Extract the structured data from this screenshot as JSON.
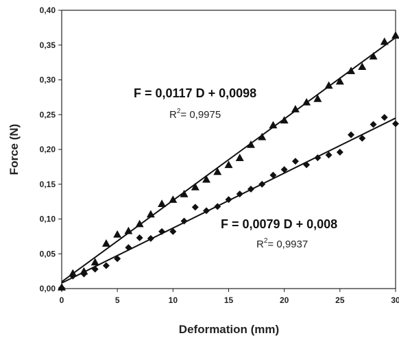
{
  "chart_data": {
    "type": "scatter",
    "xlabel": "Deformation (mm)",
    "ylabel": "Force (N)",
    "xlim": [
      0,
      30
    ],
    "ylim": [
      0,
      0.4
    ],
    "x_ticks": [
      "0",
      "5",
      "10",
      "15",
      "20",
      "25",
      "30"
    ],
    "y_ticks": [
      "0,00",
      "0,05",
      "0,10",
      "0,15",
      "0,20",
      "0,25",
      "0,30",
      "0,35",
      "0,40"
    ],
    "grid": false,
    "legend": "none",
    "series": [
      {
        "marker": "triangle",
        "color": "#111111",
        "x": [
          0,
          1,
          2,
          3,
          4,
          5,
          6,
          7,
          8,
          9,
          10,
          11,
          12,
          13,
          14,
          15,
          16,
          17,
          18,
          19,
          20,
          21,
          22,
          23,
          24,
          25,
          26,
          27,
          28,
          29,
          30
        ],
        "y": [
          0.002,
          0.022,
          0.025,
          0.038,
          0.065,
          0.078,
          0.083,
          0.093,
          0.107,
          0.122,
          0.128,
          0.136,
          0.146,
          0.157,
          0.168,
          0.178,
          0.188,
          0.207,
          0.218,
          0.235,
          0.242,
          0.258,
          0.268,
          0.273,
          0.292,
          0.298,
          0.313,
          0.319,
          0.334,
          0.355,
          0.364
        ],
        "trendline": {
          "slope": 0.0117,
          "intercept": 0.0098,
          "equation": "F = 0,0117 D + 0,0098",
          "r2_prefix": "R",
          "r2_exp": "2",
          "r2_value": "= 0,9975"
        }
      },
      {
        "marker": "diamond",
        "color": "#111111",
        "x": [
          0,
          1,
          2,
          3,
          4,
          5,
          6,
          7,
          8,
          9,
          10,
          11,
          12,
          13,
          14,
          15,
          16,
          17,
          18,
          19,
          20,
          21,
          22,
          23,
          24,
          25,
          26,
          27,
          28,
          29,
          30
        ],
        "y": [
          0.001,
          0.018,
          0.021,
          0.028,
          0.033,
          0.043,
          0.059,
          0.073,
          0.072,
          0.082,
          0.082,
          0.097,
          0.117,
          0.112,
          0.118,
          0.128,
          0.136,
          0.143,
          0.15,
          0.163,
          0.171,
          0.183,
          0.178,
          0.188,
          0.192,
          0.196,
          0.221,
          0.216,
          0.236,
          0.246,
          0.237
        ],
        "trendline": {
          "slope": 0.0079,
          "intercept": 0.008,
          "equation": "F = 0,0079 D + 0,008",
          "r2_prefix": "R",
          "r2_exp": "2",
          "r2_value": "= 0,9937"
        }
      }
    ]
  }
}
